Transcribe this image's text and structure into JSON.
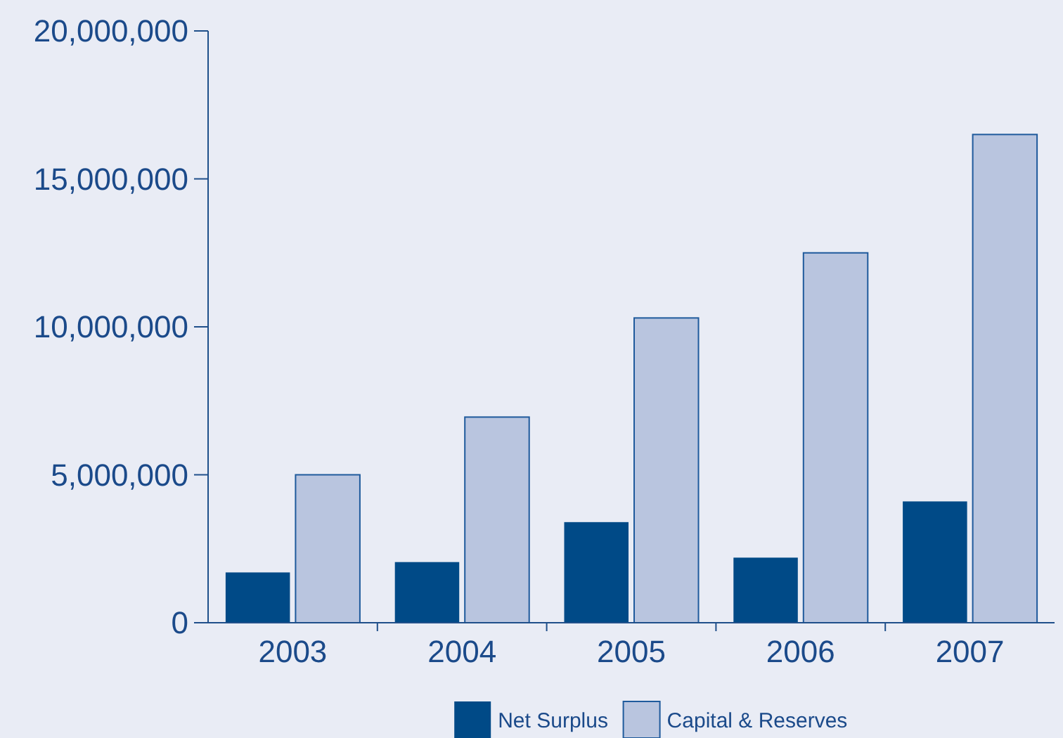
{
  "chart_data": {
    "type": "bar",
    "categories": [
      "2003",
      "2004",
      "2005",
      "2006",
      "2007"
    ],
    "series": [
      {
        "name": "Net Surplus",
        "color": "#004a87",
        "values": [
          1700000,
          2050000,
          3400000,
          2200000,
          4100000
        ]
      },
      {
        "name": "Capital & Reserves",
        "color": "#b9c5df",
        "values": [
          5000000,
          6950000,
          10300000,
          12500000,
          16500000
        ]
      }
    ],
    "ylim": [
      0,
      20000000
    ],
    "yticks": [
      {
        "value": 0,
        "label": "0"
      },
      {
        "value": 5000000,
        "label": "5,000,000"
      },
      {
        "value": 10000000,
        "label": "10,000,000"
      },
      {
        "value": 15000000,
        "label": "15,000,000"
      },
      {
        "value": 20000000,
        "label": "20,000,000"
      }
    ],
    "grid": false,
    "legend": "bottom"
  }
}
